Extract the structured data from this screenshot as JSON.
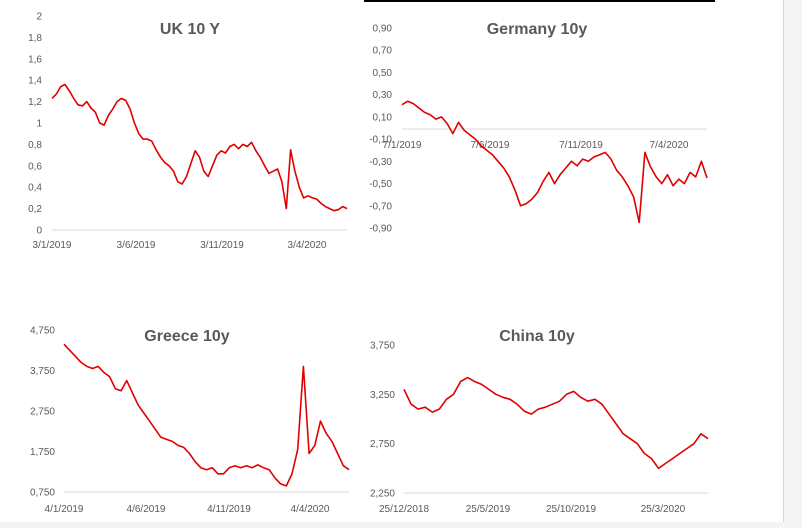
{
  "chart_data": [
    {
      "type": "line",
      "title": "UK 10 Y",
      "x_labels": [
        "3/1/2019",
        "3/6/2019",
        "3/11/2019",
        "3/4/2020"
      ],
      "y_ticks": [
        "2",
        "1,8",
        "1,6",
        "1,4",
        "1,2",
        "1",
        "0,8",
        "0,6",
        "0,4",
        "0,2",
        "0"
      ],
      "ylim": [
        0,
        2
      ],
      "color": "#e00000",
      "series": [
        {
          "name": "UK 10 Y",
          "values": [
            1.23,
            1.27,
            1.34,
            1.36,
            1.3,
            1.23,
            1.17,
            1.16,
            1.2,
            1.14,
            1.1,
            1.0,
            0.98,
            1.07,
            1.13,
            1.2,
            1.23,
            1.21,
            1.13,
            1.0,
            0.9,
            0.85,
            0.85,
            0.83,
            0.75,
            0.68,
            0.63,
            0.6,
            0.55,
            0.45,
            0.43,
            0.5,
            0.62,
            0.74,
            0.68,
            0.55,
            0.5,
            0.6,
            0.7,
            0.74,
            0.72,
            0.78,
            0.8,
            0.76,
            0.8,
            0.78,
            0.82,
            0.74,
            0.68,
            0.6,
            0.53,
            0.55,
            0.57,
            0.45,
            0.2,
            0.75,
            0.55,
            0.4,
            0.3,
            0.32,
            0.3,
            0.29,
            0.25,
            0.22,
            0.2,
            0.18,
            0.19,
            0.22,
            0.2
          ]
        }
      ]
    },
    {
      "type": "line",
      "title": "Germany 10y",
      "x_labels": [
        "7/1/2019",
        "7/6/2019",
        "7/11/2019",
        "7/4/2020"
      ],
      "y_ticks": [
        "0,90",
        "0,70",
        "0,50",
        "0,30",
        "0,10",
        "-0,10",
        "-0,30",
        "-0,50",
        "-0,70",
        "-0,90"
      ],
      "ylim": [
        -0.9,
        0.9
      ],
      "color": "#e00000",
      "series": [
        {
          "name": "Germany 10y",
          "values": [
            0.21,
            0.24,
            0.22,
            0.18,
            0.14,
            0.12,
            0.08,
            0.1,
            0.04,
            -0.05,
            0.05,
            -0.02,
            -0.06,
            -0.1,
            -0.16,
            -0.2,
            -0.24,
            -0.3,
            -0.36,
            -0.44,
            -0.56,
            -0.7,
            -0.68,
            -0.64,
            -0.58,
            -0.48,
            -0.4,
            -0.5,
            -0.42,
            -0.36,
            -0.3,
            -0.34,
            -0.28,
            -0.3,
            -0.26,
            -0.24,
            -0.22,
            -0.28,
            -0.38,
            -0.44,
            -0.52,
            -0.62,
            -0.85,
            -0.22,
            -0.35,
            -0.44,
            -0.5,
            -0.42,
            -0.52,
            -0.46,
            -0.5,
            -0.4,
            -0.44,
            -0.3,
            -0.45
          ]
        }
      ]
    },
    {
      "type": "line",
      "title": "Greece 10y",
      "x_labels": [
        "4/1/2019",
        "4/6/2019",
        "4/11/2019",
        "4/4/2020"
      ],
      "y_ticks": [
        "4,750",
        "3,750",
        "2,750",
        "1,750",
        "0,750"
      ],
      "ylim": [
        0.75,
        4.75
      ],
      "color": "#e00000",
      "series": [
        {
          "name": "Greece 10y",
          "values": [
            4.4,
            4.25,
            4.1,
            3.95,
            3.85,
            3.8,
            3.85,
            3.7,
            3.6,
            3.3,
            3.25,
            3.5,
            3.2,
            2.9,
            2.7,
            2.5,
            2.3,
            2.1,
            2.05,
            2.0,
            1.9,
            1.85,
            1.7,
            1.5,
            1.35,
            1.3,
            1.35,
            1.2,
            1.2,
            1.35,
            1.4,
            1.35,
            1.4,
            1.35,
            1.42,
            1.35,
            1.3,
            1.1,
            0.95,
            0.9,
            1.2,
            1.8,
            3.85,
            1.7,
            1.9,
            2.5,
            2.2,
            2.0,
            1.7,
            1.4,
            1.3
          ]
        }
      ]
    },
    {
      "type": "line",
      "title": "China 10y",
      "x_labels": [
        "25/12/2018",
        "25/5/2019",
        "25/10/2019",
        "25/3/2020"
      ],
      "y_ticks": [
        "3,750",
        "3,250",
        "2,750",
        "2,250"
      ],
      "ylim": [
        2.25,
        3.75
      ],
      "color": "#e00000",
      "series": [
        {
          "name": "China 10y",
          "values": [
            3.3,
            3.15,
            3.1,
            3.12,
            3.07,
            3.1,
            3.2,
            3.25,
            3.38,
            3.42,
            3.38,
            3.35,
            3.3,
            3.25,
            3.22,
            3.2,
            3.15,
            3.08,
            3.05,
            3.1,
            3.12,
            3.15,
            3.18,
            3.25,
            3.28,
            3.22,
            3.18,
            3.2,
            3.15,
            3.05,
            2.95,
            2.85,
            2.8,
            2.75,
            2.65,
            2.6,
            2.5,
            2.55,
            2.6,
            2.65,
            2.7,
            2.75,
            2.85,
            2.8
          ]
        }
      ]
    }
  ]
}
